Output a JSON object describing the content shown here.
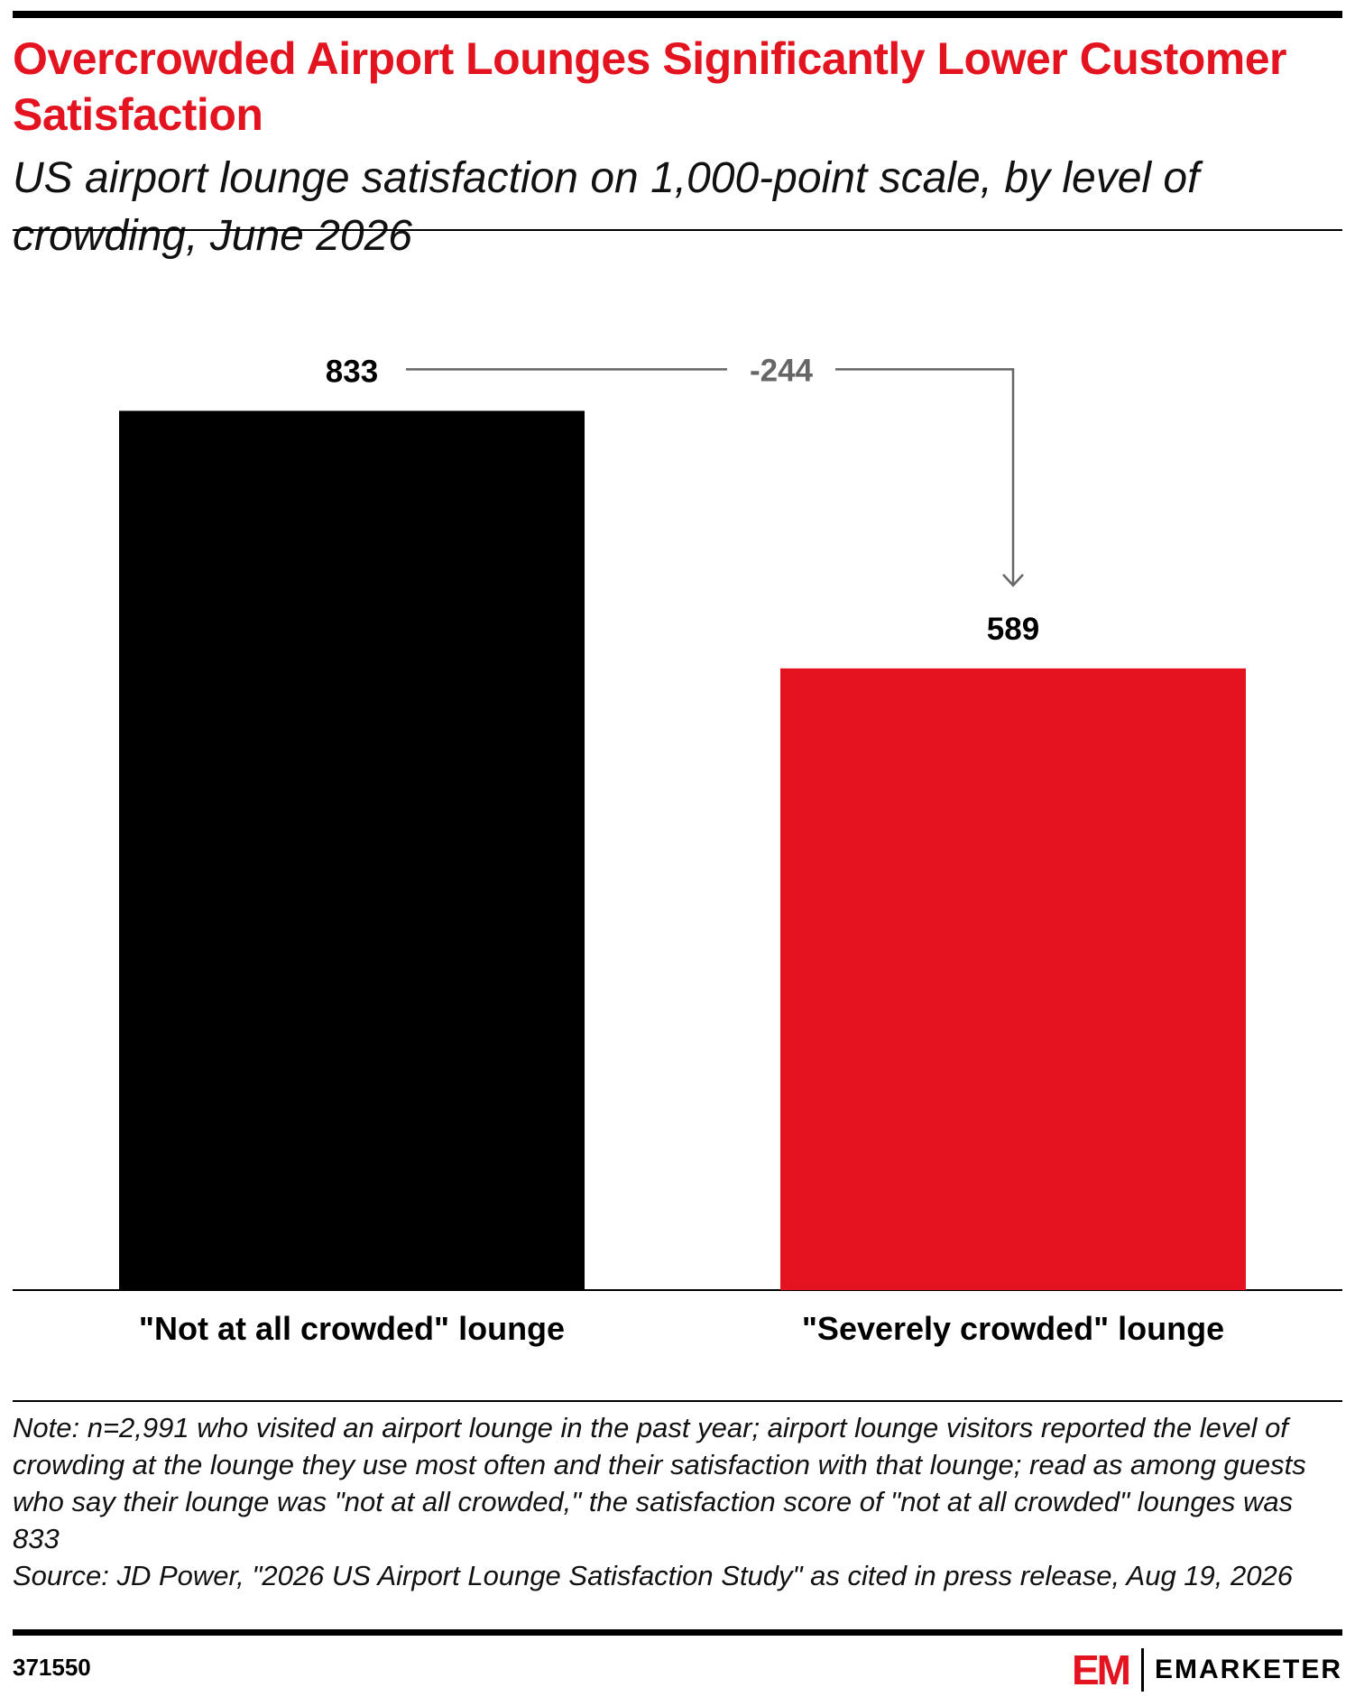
{
  "title": "Overcrowded Airport Lounges Significantly Lower Customer Satisfaction",
  "subtitle": "US airport lounge satisfaction on 1,000-point scale, by level of crowding, June 2026",
  "note": "Note: n=2,991 who visited an airport lounge in the past year; airport lounge visitors reported the level of crowding at the lounge they use most often and their satisfaction with that lounge; read as among guests who say their lounge was \"not at all crowded,\" the satisfaction score of \"not at all crowded\" lounges was 833",
  "source": "Source: JD Power, \"2026 US Airport Lounge Satisfaction Study\" as cited in press release, Aug 19, 2026",
  "chart_id": "371550",
  "brand": {
    "mark": "EM",
    "name": "EMARKETER"
  },
  "colors": {
    "title": "#e3141f",
    "bar_1": "#000000",
    "bar_2": "#e3141f",
    "annotation": "#666666"
  },
  "chart_data": {
    "type": "bar",
    "categories": [
      "\"Not at all crowded\" lounge",
      "\"Severely crowded\" lounge"
    ],
    "values": [
      833,
      589
    ],
    "data_labels": [
      "833",
      "589"
    ],
    "difference_label": "-244",
    "ylim": [
      0,
      1000
    ],
    "grid": false,
    "legend": "none",
    "xlabel": "",
    "ylabel": ""
  }
}
